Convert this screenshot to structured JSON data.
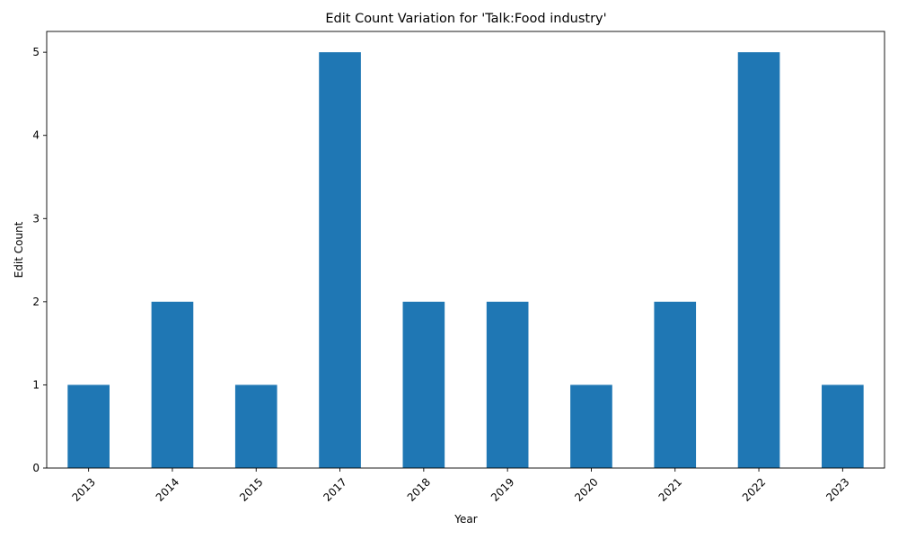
{
  "chart_data": {
    "type": "bar",
    "title": "Edit Count Variation for 'Talk:Food industry'",
    "xlabel": "Year",
    "ylabel": "Edit Count",
    "categories": [
      "2013",
      "2014",
      "2015",
      "2017",
      "2018",
      "2019",
      "2020",
      "2021",
      "2022",
      "2023"
    ],
    "values": [
      1,
      2,
      1,
      5,
      2,
      2,
      1,
      2,
      5,
      1
    ],
    "ylim": [
      0,
      5.25
    ],
    "yticks": [
      0,
      1,
      2,
      3,
      4,
      5
    ],
    "color": "#1f77b4",
    "grid": false,
    "legend": "none",
    "xtick_rotation": 45
  }
}
